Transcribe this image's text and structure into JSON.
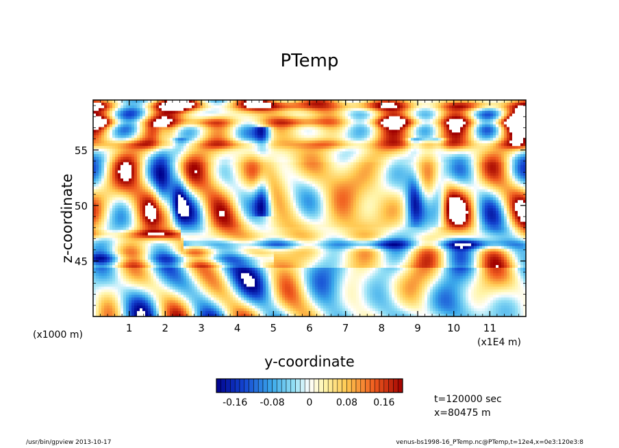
{
  "chart_data": {
    "type": "heatmap",
    "title": "PTemp",
    "xlabel": "y-coordinate",
    "ylabel": "z-coordinate",
    "x_unit_multiplier": "(x1E4 m)",
    "y_unit_multiplier": "(x1000 m)",
    "xlim": [
      0,
      12
    ],
    "ylim": [
      40,
      59.5
    ],
    "x_ticks": [
      "1",
      "2",
      "3",
      "4",
      "5",
      "6",
      "7",
      "8",
      "9",
      "10",
      "11"
    ],
    "y_ticks": [
      "45",
      "50",
      "55"
    ],
    "colorbar": {
      "min": -0.2,
      "max": 0.2,
      "tick_labels": [
        "-0.16",
        "-0.08",
        "0",
        "0.08",
        "0.16"
      ],
      "tick_values": [
        -0.16,
        -0.08,
        0,
        0.08,
        0.16
      ]
    },
    "features": [
      {
        "kind": "band",
        "z": 46.5,
        "value": -0.17,
        "from": 2.5,
        "to": 12
      },
      {
        "kind": "band",
        "z": 47.4,
        "value": 0.16,
        "from": 0,
        "to": 2.4
      },
      {
        "kind": "band",
        "z": 45.2,
        "value": -0.1,
        "from": 0,
        "to": 5
      },
      {
        "kind": "band",
        "z": 57.5,
        "value": 0.12,
        "from": 0,
        "to": 12
      },
      {
        "kind": "band",
        "z": 55.5,
        "value": 0.1,
        "from": 0,
        "to": 12
      },
      {
        "kind": "band",
        "z": 59.0,
        "value": 0.15,
        "from": 0,
        "to": 12
      },
      {
        "kind": "column",
        "y": 4.7,
        "value": -0.18,
        "zfrom": 49,
        "zto": 57
      },
      {
        "kind": "column",
        "y": 8.9,
        "value": -0.15,
        "zfrom": 48,
        "zto": 56
      },
      {
        "kind": "column",
        "y": 9.6,
        "value": -0.15,
        "zfrom": 48,
        "zto": 56
      },
      {
        "kind": "column",
        "y": 1.9,
        "value": -0.1,
        "zfrom": 47,
        "zto": 57
      },
      {
        "kind": "column",
        "y": 2.4,
        "value": -0.12,
        "zfrom": 47,
        "zto": 56
      }
    ],
    "annotations": [
      "t=120000 sec",
      "x=80475 m"
    ]
  },
  "footer": {
    "left": "/usr/bin/gpview   2013-10-17",
    "right": "venus-bs1998-16_PTemp.nc@PTemp,t=12e4,x=0e3:120e3:8"
  },
  "colors": {
    "negative_max": "#00008c",
    "neutral": "#ffffff",
    "positive_max": "#a00000"
  }
}
